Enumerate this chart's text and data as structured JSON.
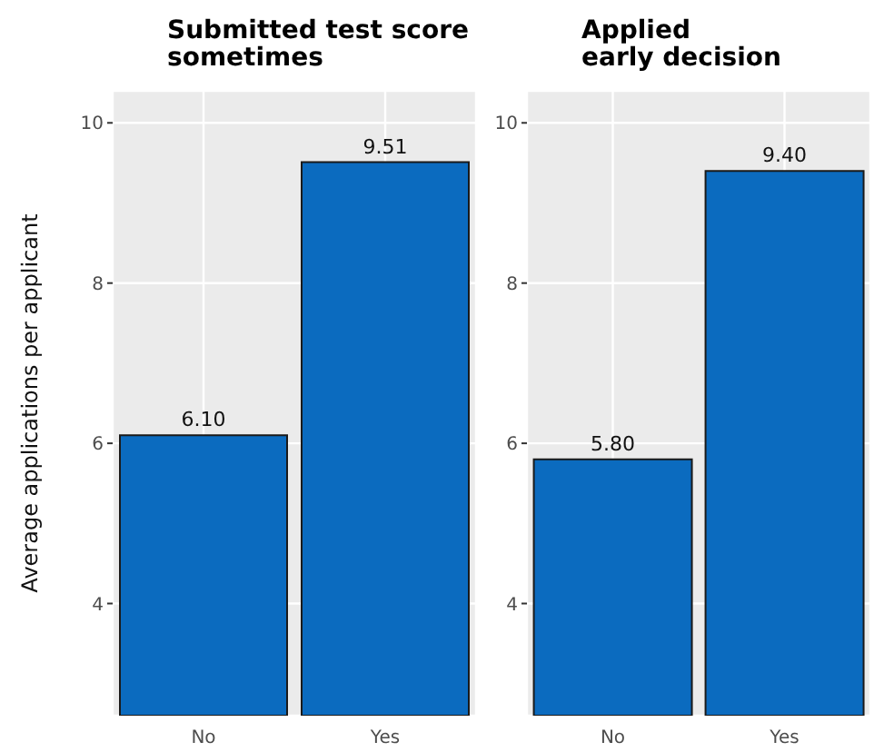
{
  "chart_data": [
    {
      "type": "bar",
      "title": "Submitted test score\nsometimes",
      "ylabel": "Average applications per applicant",
      "categories": [
        "No",
        "Yes"
      ],
      "values": [
        6.1,
        9.51
      ],
      "value_labels": [
        "6.10",
        "9.51"
      ],
      "color": "#0b6bbf",
      "ylim": [
        2.6,
        10.4
      ],
      "yticks": [
        4,
        6,
        8,
        10
      ],
      "grid": true
    },
    {
      "type": "bar",
      "title": "Applied\nearly decision",
      "categories": [
        "No",
        "Yes"
      ],
      "values": [
        5.8,
        9.4
      ],
      "value_labels": [
        "5.80",
        "9.40"
      ],
      "color": "#0b6bbf",
      "ylim": [
        2.6,
        10.4
      ],
      "yticks": [
        4,
        6,
        8,
        10
      ],
      "grid": true
    }
  ]
}
